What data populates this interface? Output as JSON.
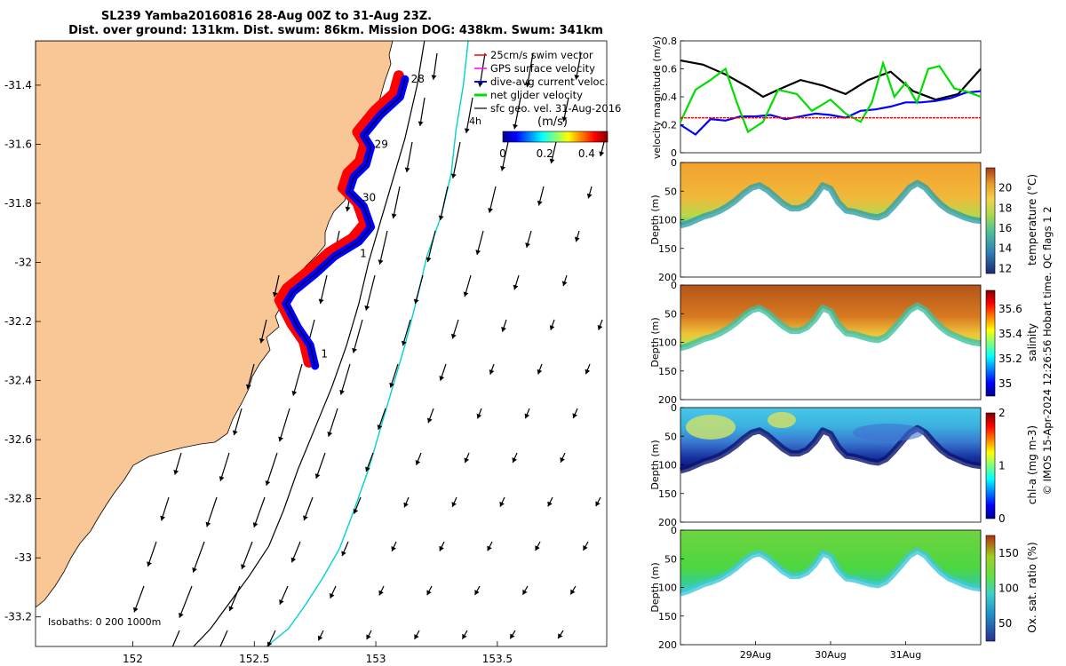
{
  "title_line1": "SL239 Yamba20160816 28-Aug 00Z to 31-Aug 23Z.",
  "title_line2": "Dist. over ground: 131km. Dist. swum: 86km. Mission DOG: 438km. Swum: 341km",
  "footer_vertical": "© IMOS 15-Apr-2024 12:26:56 Hobart time. QC flags 1  2",
  "colors": {
    "land": "#f9c795",
    "swim_vector": "#ff0000",
    "gps_velocity": "#ff00ff",
    "current_vector": "#0000ff",
    "net_velocity": "#00dd00",
    "sfc_vector": "#000000",
    "isobath_200": "#000000",
    "isobath_1000": "#00d0d0"
  },
  "chart_data": [
    {
      "type": "map",
      "panel": "glider track and velocity map",
      "x_ticks": [
        "152",
        "152.5",
        "153",
        "153.5"
      ],
      "y_ticks": [
        "-31.4",
        "-31.6",
        "-31.8",
        "-32",
        "-32.2",
        "-32.4",
        "-32.6",
        "-32.8",
        "-33",
        "-33.2"
      ],
      "xlim": [
        151.6,
        153.95
      ],
      "ylim": [
        -33.3,
        -31.25
      ],
      "legend": [
        {
          "label": "25cm/s swim vector",
          "color": "#ff0000"
        },
        {
          "label": "GPS surface velocity",
          "color": "#ff00ff"
        },
        {
          "label": "dive-avg current veloc.",
          "color": "#0000ff"
        },
        {
          "label": "net glider velocity",
          "color": "#00dd00"
        },
        {
          "label": "sfc geo. vel. 31-Aug-2016",
          "color": "#000000"
        }
      ],
      "colorbar": {
        "label": "(m/s)",
        "ticks": [
          "0",
          "0.2",
          "0.4"
        ],
        "range": [
          0,
          0.5
        ]
      },
      "isobaths_label": "Isobaths: 0   200  1000m",
      "extra_label": "4h",
      "track": {
        "lon": [
          152.75,
          152.73,
          152.68,
          152.63,
          152.66,
          152.75,
          152.83,
          152.93,
          152.98,
          152.95,
          152.89,
          152.91,
          152.96,
          152.98,
          152.95,
          153.02,
          153.1,
          153.12
        ],
        "lat": [
          -32.35,
          -32.28,
          -32.22,
          -32.14,
          -32.1,
          -32.04,
          -31.98,
          -31.93,
          -31.88,
          -31.81,
          -31.76,
          -31.71,
          -31.67,
          -31.61,
          -31.57,
          -31.5,
          -31.44,
          -31.38
        ]
      },
      "day_markers": [
        {
          "label": "28",
          "lon": 153.13,
          "lat": -31.38
        },
        {
          "label": "29",
          "lon": 152.98,
          "lat": -31.6
        },
        {
          "label": "30",
          "lon": 152.93,
          "lat": -31.78
        },
        {
          "label": "1",
          "lon": 152.92,
          "lat": -31.97
        },
        {
          "label": "1",
          "lon": 152.76,
          "lat": -32.31
        }
      ],
      "isobath_200": {
        "lon": [
          153.2,
          153.17,
          153.12,
          153.07,
          153.02,
          152.97,
          152.93,
          152.88,
          152.82,
          152.75,
          152.68,
          152.62,
          152.56,
          152.48,
          152.4,
          152.32,
          152.25
        ],
        "lat": [
          -31.25,
          -31.4,
          -31.58,
          -31.72,
          -31.86,
          -32.0,
          -32.14,
          -32.28,
          -32.42,
          -32.56,
          -32.7,
          -32.84,
          -32.96,
          -33.06,
          -33.15,
          -33.24,
          -33.3
        ]
      },
      "isobath_1000": {
        "lon": [
          153.38,
          153.36,
          153.33,
          153.31,
          153.27,
          153.21,
          153.17,
          153.12,
          153.07,
          153.02,
          152.97,
          152.91,
          152.85,
          152.78,
          152.71,
          152.64,
          152.55
        ],
        "lat": [
          -31.25,
          -31.4,
          -31.55,
          -31.7,
          -31.84,
          -31.98,
          -32.12,
          -32.28,
          -32.42,
          -32.56,
          -32.7,
          -32.84,
          -32.97,
          -33.07,
          -33.16,
          -33.24,
          -33.3
        ]
      }
    },
    {
      "type": "line",
      "panel": "velocity magnitude",
      "ylabel": "velocity magnitude (m/s)",
      "ylim": [
        0,
        0.8
      ],
      "y_ticks": [
        "0",
        "0.2",
        "0.4",
        "0.6",
        "0.8"
      ],
      "x_range_days": [
        28.0,
        32.0
      ],
      "series": [
        {
          "color": "#000000",
          "x": [
            28.0,
            28.3,
            28.6,
            28.9,
            29.1,
            29.3,
            29.6,
            29.9,
            30.2,
            30.5,
            30.8,
            31.1,
            31.4,
            31.7,
            32.0
          ],
          "values": [
            0.66,
            0.63,
            0.56,
            0.47,
            0.4,
            0.45,
            0.52,
            0.48,
            0.42,
            0.52,
            0.58,
            0.44,
            0.38,
            0.42,
            0.6
          ]
        },
        {
          "color": "#0000ff",
          "x": [
            28.0,
            28.2,
            28.4,
            28.6,
            28.8,
            29.0,
            29.2,
            29.4,
            29.6,
            29.8,
            30.0,
            30.2,
            30.4,
            30.6,
            30.8,
            31.0,
            31.2,
            31.4,
            31.6,
            31.8,
            32.0
          ],
          "values": [
            0.2,
            0.13,
            0.24,
            0.23,
            0.26,
            0.26,
            0.27,
            0.24,
            0.26,
            0.28,
            0.27,
            0.25,
            0.3,
            0.31,
            0.33,
            0.36,
            0.36,
            0.37,
            0.39,
            0.43,
            0.44
          ]
        },
        {
          "color": "#00dd00",
          "x": [
            28.0,
            28.2,
            28.4,
            28.6,
            28.75,
            28.9,
            29.1,
            29.3,
            29.55,
            29.75,
            30.0,
            30.2,
            30.4,
            30.55,
            30.7,
            30.85,
            31.0,
            31.15,
            31.3,
            31.45,
            31.65,
            31.8,
            32.0
          ],
          "values": [
            0.22,
            0.45,
            0.52,
            0.6,
            0.36,
            0.15,
            0.22,
            0.45,
            0.42,
            0.3,
            0.38,
            0.28,
            0.22,
            0.36,
            0.64,
            0.4,
            0.5,
            0.36,
            0.6,
            0.62,
            0.46,
            0.44,
            0.4
          ]
        },
        {
          "color": "#ff0000",
          "x": [
            28.0,
            32.0
          ],
          "values": [
            0.25,
            0.25
          ]
        }
      ]
    },
    {
      "type": "heatmap",
      "panel": "temperature",
      "ylabel": "Depth (m)",
      "ylim": [
        200,
        0
      ],
      "y_ticks": [
        "0",
        "50",
        "100",
        "150",
        "200"
      ],
      "colorbar_label": "temperature (°C)",
      "colorbar_ticks": [
        "12",
        "14",
        "16",
        "18",
        "20"
      ],
      "crange": [
        11.5,
        22
      ]
    },
    {
      "type": "heatmap",
      "panel": "salinity",
      "ylabel": "Depth (m)",
      "ylim": [
        200,
        0
      ],
      "y_ticks": [
        "0",
        "50",
        "100",
        "150",
        "200"
      ],
      "colorbar_label": "salinity",
      "colorbar_ticks": [
        "35",
        "35.2",
        "35.4",
        "35.6"
      ],
      "crange": [
        34.9,
        35.75
      ]
    },
    {
      "type": "heatmap",
      "panel": "chlorophyll",
      "ylabel": "Depth (m)",
      "ylim": [
        200,
        0
      ],
      "y_ticks": [
        "0",
        "50",
        "100",
        "150",
        "200"
      ],
      "colorbar_label": "chl-a (mg m-3)",
      "colorbar_ticks": [
        "0",
        "1",
        "2"
      ],
      "crange": [
        0,
        2
      ]
    },
    {
      "type": "heatmap",
      "panel": "oxygen",
      "ylabel": "Depth (m)",
      "ylim": [
        200,
        0
      ],
      "y_ticks": [
        "0",
        "50",
        "100",
        "150",
        "200"
      ],
      "colorbar_label": "Ox. sat. ratio (%)",
      "colorbar_ticks": [
        "50",
        "100",
        "150"
      ],
      "crange": [
        25,
        175
      ],
      "x_ticks": [
        "29Aug",
        "30Aug",
        "31Aug"
      ]
    }
  ]
}
